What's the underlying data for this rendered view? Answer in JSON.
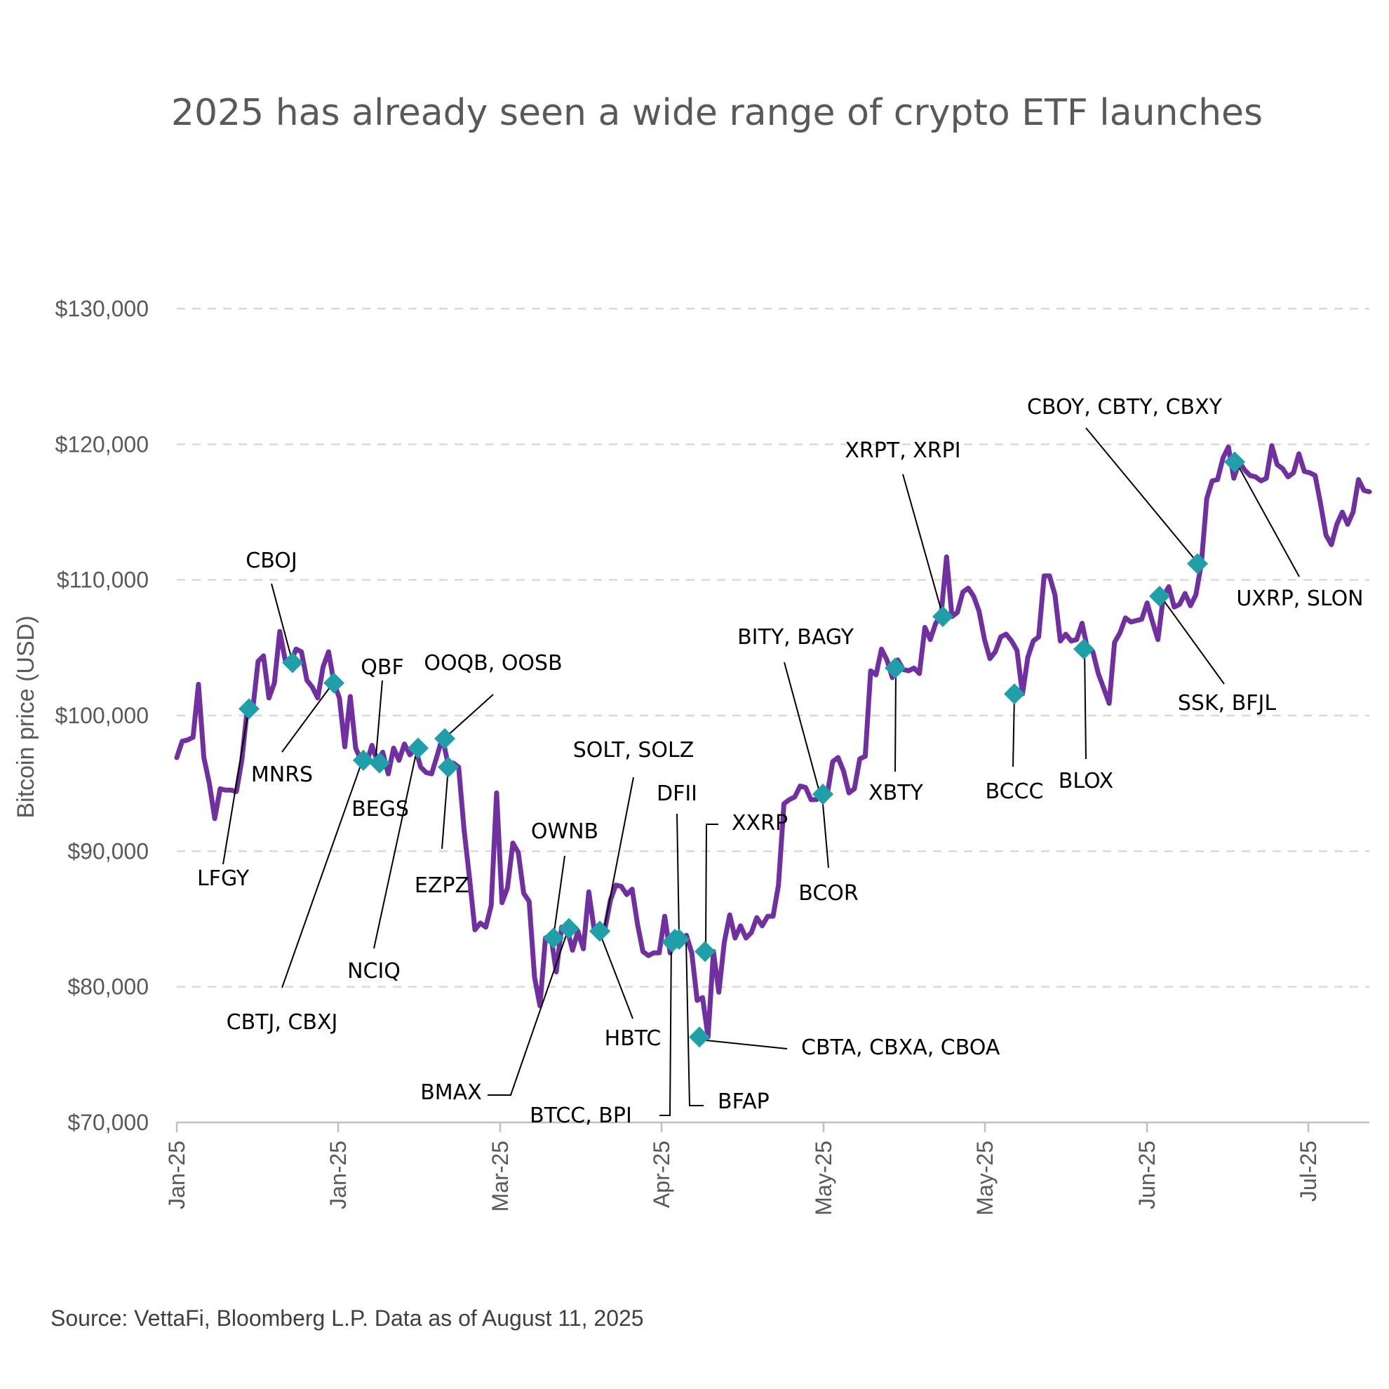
{
  "chart_data": {
    "type": "line",
    "title": "2025 has already seen a wide range of crypto ETF launches",
    "ylabel": "Bitcoin price (USD)",
    "ylim": [
      70000,
      130000
    ],
    "yticks": [
      70000,
      80000,
      90000,
      100000,
      110000,
      120000,
      130000
    ],
    "ytick_labels": [
      "$70,000",
      "$80,000",
      "$90,000",
      "$100,000",
      "$110,000",
      "$120,000",
      "$130,000"
    ],
    "xtick_labels": [
      "Jan-25",
      "Jan-25",
      "Mar-25",
      "Apr-25",
      "May-25",
      "May-25",
      "Jun-25",
      "Jul-25"
    ],
    "grid": true,
    "legend": "none",
    "source": "Source: VettaFi, Bloomberg L.P. Data as of August 11, 2025",
    "colors": {
      "line": "#7030a0",
      "marker": "#1fa0a8"
    },
    "series": [
      {
        "values": [
          96900,
          98100,
          98200,
          98400,
          102300,
          96900,
          95000,
          92400,
          94600,
          94500,
          94500,
          94400,
          96700,
          100500,
          100400,
          104000,
          104400,
          101300,
          102400,
          106200,
          104100,
          103900,
          104900,
          104700,
          102600,
          102100,
          101300,
          103600,
          104700,
          102400,
          101300,
          97700,
          101400,
          97600,
          96700,
          96500,
          97800,
          96600,
          97300,
          95700,
          97600,
          96700,
          97900,
          97100,
          97600,
          96200,
          95800,
          95700,
          97000,
          98400,
          96500,
          96500,
          96200,
          91600,
          88000,
          84200,
          84700,
          84400,
          86000,
          94300,
          86200,
          87300,
          90600,
          89900,
          86900,
          86300,
          80700,
          78600,
          83600,
          83800,
          81100,
          84400,
          84300,
          82700,
          84100,
          82800,
          87000,
          84200,
          84600,
          84300,
          86400,
          87500,
          87400,
          86800,
          87200,
          84600,
          82600,
          82300,
          82500,
          82500,
          85200,
          82500,
          83500,
          83300,
          83800,
          82500,
          79000,
          79200,
          76300,
          82600,
          79600,
          83300,
          85300,
          83600,
          84500,
          83600,
          84000,
          85100,
          84500,
          85200,
          85200,
          87500,
          93500,
          93800,
          94000,
          94800,
          94700,
          93800,
          93800,
          94300,
          94200,
          96600,
          96900,
          95900,
          94300,
          94600,
          96800,
          97000,
          103300,
          103000,
          104900,
          104100,
          102800,
          104100,
          103400,
          103300,
          103500,
          103100,
          106500,
          105600,
          106800,
          107400,
          111700,
          107300,
          107600,
          109100,
          109400,
          108800,
          107700,
          105600,
          104200,
          104700,
          105800,
          106000,
          105500,
          104800,
          101600,
          104300,
          105500,
          105800,
          110300,
          110300,
          108900,
          105500,
          106000,
          105500,
          105600,
          106800,
          104900,
          104700,
          103100,
          102000,
          100900,
          105400,
          106100,
          107200,
          106900,
          107000,
          107100,
          108300,
          106900,
          105600,
          108800,
          109500,
          108000,
          108200,
          109000,
          108100,
          108900,
          111200,
          116000,
          117300,
          117400,
          119000,
          119800,
          117500,
          118700,
          118100,
          117700,
          117600,
          117300,
          117500,
          119900,
          118500,
          118200,
          117600,
          117900,
          119300,
          118000,
          117900,
          117700,
          115600,
          113300,
          112600,
          114100,
          115000,
          114100,
          115000,
          117400,
          116600,
          116500
        ]
      }
    ],
    "launches": [
      {
        "label": "LFGY",
        "value": 100500
      },
      {
        "label": "CBOJ",
        "value": 103900
      },
      {
        "label": "MNRS",
        "value": 102400
      },
      {
        "label": "QBF",
        "value": 96500
      },
      {
        "label": "BEGS",
        "value": 96700
      },
      {
        "label": "CBTJ, CBXJ",
        "value": 96700
      },
      {
        "label": "NCIQ",
        "value": 97600
      },
      {
        "label": "OOQB, OOSB",
        "value": 98300
      },
      {
        "label": "EZPZ",
        "value": 96200
      },
      {
        "label": "OWNB",
        "value": 83600
      },
      {
        "label": "BMAX",
        "value": 84300
      },
      {
        "label": "SOLT, SOLZ",
        "value": 84100
      },
      {
        "label": "HBTC",
        "value": 84100
      },
      {
        "label": "DFII",
        "value": 83500
      },
      {
        "label": "BTCC, BPI",
        "value": 83300
      },
      {
        "label": "BFAP",
        "value": 83500
      },
      {
        "label": "XXRP",
        "value": 82600
      },
      {
        "label": "CBTA, CBXA, CBOA",
        "value": 76300
      },
      {
        "label": "BITY, BAGY",
        "value": 94200
      },
      {
        "label": "BCOR",
        "value": 94200
      },
      {
        "label": "XBTY",
        "value": 103500
      },
      {
        "label": "XRPT, XRPI",
        "value": 107300
      },
      {
        "label": "BCCC",
        "value": 101600
      },
      {
        "label": "BLOX",
        "value": 104900
      },
      {
        "label": "SSK, BFJL",
        "value": 108800
      },
      {
        "label": "CBOY, CBTY, CBXY",
        "value": 111200
      },
      {
        "label": "UXRP, SLON",
        "value": 118700
      }
    ]
  }
}
